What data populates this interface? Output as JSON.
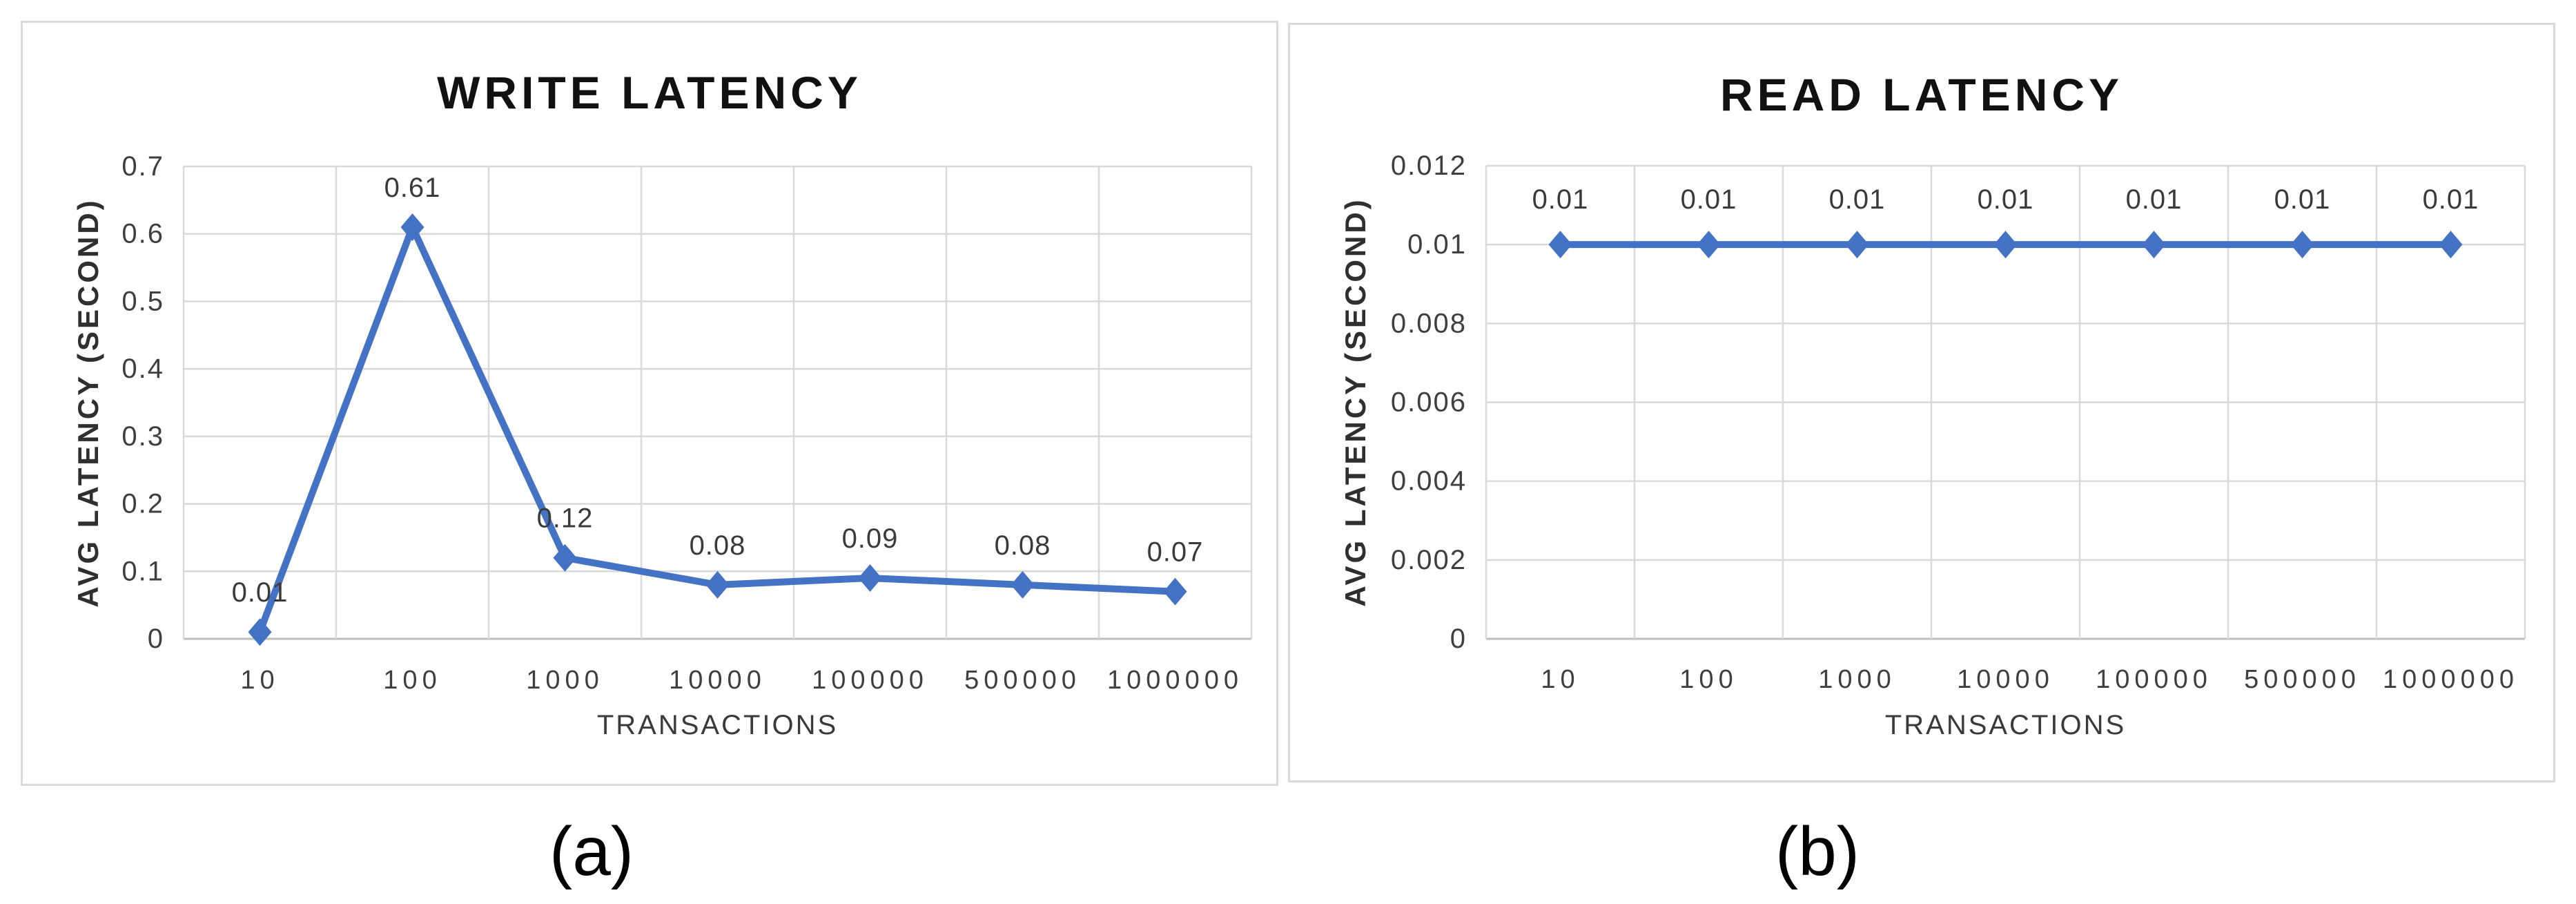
{
  "styles": {
    "line_color": "#4472C4",
    "gridline_color": "#D9D9D9",
    "axis_line_color": "#BFBFBF",
    "tick_text_color": "#3F3F3F",
    "data_label_color": "#3A3A3A",
    "title_color": "#111111",
    "panel_border_color": "#D9D9D9",
    "background": "#FFFFFF"
  },
  "chart_data": [
    {
      "type": "line",
      "id": "write-latency",
      "title": "WRITE LATENCY",
      "subfigure_label": "(a)",
      "xlabel": "TRANSACTIONS",
      "ylabel": "AVG LATENCY (SECOND)",
      "categories": [
        "10",
        "100",
        "1000",
        "10000",
        "100000",
        "500000",
        "1000000"
      ],
      "series": [
        {
          "name": "WRITE LATENCY",
          "values": [
            0.01,
            0.61,
            0.12,
            0.08,
            0.09,
            0.08,
            0.07
          ]
        }
      ],
      "data_labels": [
        "0.01",
        "0.61",
        "0.12",
        "0.08",
        "0.09",
        "0.08",
        "0.07"
      ],
      "ylim": [
        0,
        0.7
      ],
      "y_ticks": [
        {
          "label": "0.7",
          "value": 0.7
        },
        {
          "label": "0.6",
          "value": 0.6
        },
        {
          "label": "0.5",
          "value": 0.5
        },
        {
          "label": "0.4",
          "value": 0.4
        },
        {
          "label": "0.3",
          "value": 0.3
        },
        {
          "label": "0.2",
          "value": 0.2
        },
        {
          "label": "0.1",
          "value": 0.1
        },
        {
          "label": "0",
          "value": 0
        }
      ],
      "grid": true,
      "legend": "none",
      "marker": "diamond"
    },
    {
      "type": "line",
      "id": "read-latency",
      "title": "READ LATENCY",
      "subfigure_label": "(b)",
      "xlabel": "TRANSACTIONS",
      "ylabel": "AVG LATENCY (SECOND)",
      "categories": [
        "10",
        "100",
        "1000",
        "10000",
        "100000",
        "500000",
        "1000000"
      ],
      "series": [
        {
          "name": "READ LATENCY",
          "values": [
            0.01,
            0.01,
            0.01,
            0.01,
            0.01,
            0.01,
            0.01
          ]
        }
      ],
      "data_labels": [
        "0.01",
        "0.01",
        "0.01",
        "0.01",
        "0.01",
        "0.01",
        "0.01"
      ],
      "ylim": [
        0,
        0.012
      ],
      "y_ticks": [
        {
          "label": "0.012",
          "value": 0.012
        },
        {
          "label": "0.01",
          "value": 0.01
        },
        {
          "label": "0.008",
          "value": 0.008
        },
        {
          "label": "0.006",
          "value": 0.006
        },
        {
          "label": "0.004",
          "value": 0.004
        },
        {
          "label": "0.002",
          "value": 0.002
        },
        {
          "label": "0",
          "value": 0
        }
      ],
      "grid": true,
      "legend": "none",
      "marker": "diamond"
    }
  ]
}
